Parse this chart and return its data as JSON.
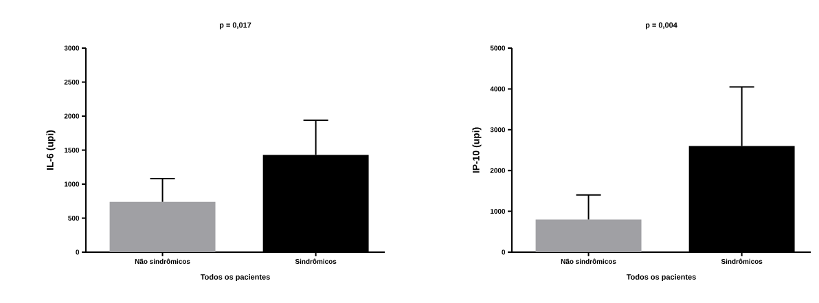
{
  "chart_data": [
    {
      "type": "bar",
      "title": "p = 0,017",
      "xlabel": "Todos os pacientes",
      "ylabel": "IL-6 (upi)",
      "categories": [
        "Não sindrômicos",
        "Sindrômicos"
      ],
      "values": [
        740,
        1430
      ],
      "colors": [
        "#a0a0a4",
        "#000000"
      ],
      "errors": [
        [
          740,
          1080
        ],
        [
          1430,
          1940
        ]
      ],
      "ylim": [
        0,
        3000
      ],
      "yticks": [
        0,
        500,
        1000,
        1500,
        2000,
        2500,
        3000
      ]
    },
    {
      "type": "bar",
      "title": "p = 0,004",
      "xlabel": "Todos os pacientes",
      "ylabel": "IP-10 (upi)",
      "categories": [
        "Não sindrômicos",
        "Sindrômicos"
      ],
      "values": [
        800,
        2600
      ],
      "colors": [
        "#a0a0a4",
        "#000000"
      ],
      "errors": [
        [
          800,
          1400
        ],
        [
          2600,
          4050
        ]
      ],
      "ylim": [
        0,
        5000
      ],
      "yticks": [
        0,
        1000,
        2000,
        3000,
        4000,
        5000
      ]
    }
  ]
}
